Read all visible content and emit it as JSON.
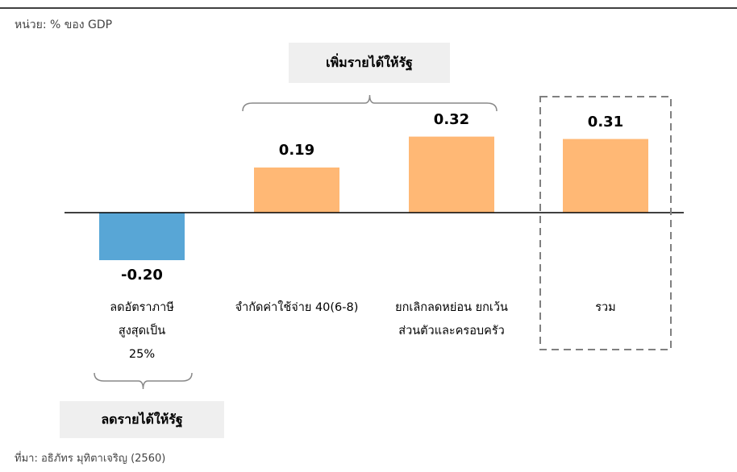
{
  "unit_label": "หน่วย: % ของ GDP",
  "source_label": "ที่มา: อธิภัทร มุทิตาเจริญ (2560)",
  "callouts": {
    "increase_revenue": "เพิ่มรายได้ให้รัฐ",
    "decrease_revenue": "ลดรายได้ให้รัฐ"
  },
  "colors": {
    "negative_bar": "#58a6d6",
    "positive_bar": "#ffb875",
    "axis": "#000000",
    "dashed_box": "#808080"
  },
  "chart_data": {
    "type": "bar",
    "categories": [
      "ลดอัตราภาษีสูงสุดเป็น 25%",
      "จำกัดค่าใช้จ่าย 40(6-8)",
      "ยกเลิกลดหย่อน ยกเว้นส่วนตัวและครอบครัว",
      "รวม"
    ],
    "category_label_lines": [
      [
        "ลดอัตราภาษี",
        "สูงสุดเป็น",
        "25%"
      ],
      [
        "จำกัดค่าใช้จ่าย 40(6-8)"
      ],
      [
        "ยกเลิกลดหย่อน ยกเว้น",
        "ส่วนตัวและครอบครัว"
      ],
      [
        "รวม"
      ]
    ],
    "values": [
      -0.2,
      0.19,
      0.32,
      0.31
    ],
    "value_labels": [
      "-0.20",
      "0.19",
      "0.32",
      "0.31"
    ],
    "ylim": [
      -0.2,
      0.32
    ],
    "grid": false,
    "legend": "none"
  }
}
